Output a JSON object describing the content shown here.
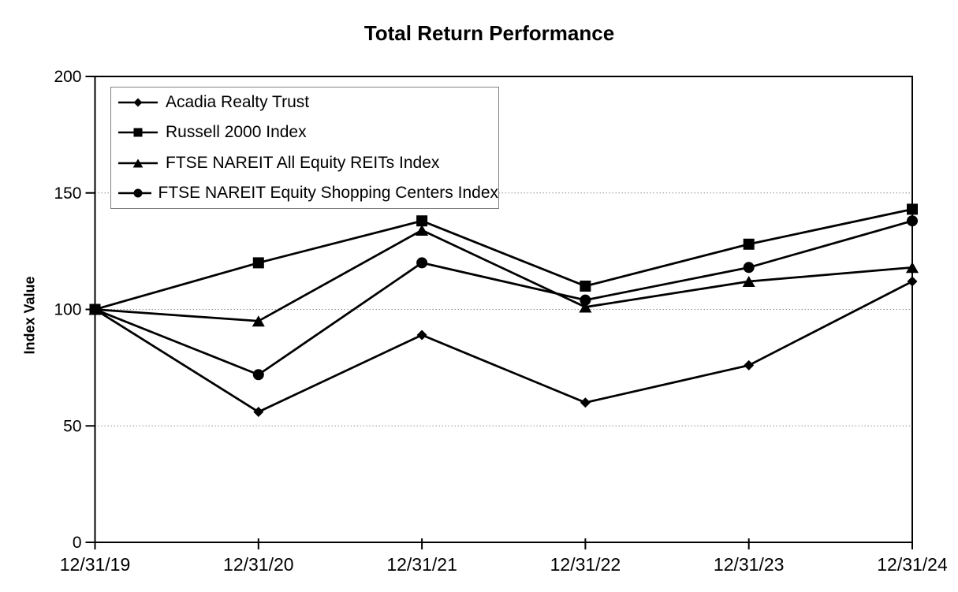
{
  "chart_data": {
    "type": "line",
    "title": "Total Return Performance",
    "ylabel": "Index Value",
    "xlabel": "",
    "x_categories": [
      "12/31/19",
      "12/31/20",
      "12/31/21",
      "12/31/22",
      "12/31/23",
      "12/31/24"
    ],
    "ylim": [
      0,
      200
    ],
    "yticks": [
      0,
      50,
      100,
      150,
      200
    ],
    "gridline_values": [
      50,
      100,
      150
    ],
    "grid_on": true,
    "legend_position": "top-left-inside",
    "line_color": "#000000",
    "grid_color": "#909090",
    "legend_border_color": "#808080",
    "series": [
      {
        "name": "Acadia Realty Trust",
        "marker": "diamond",
        "values": [
          100,
          56,
          89,
          60,
          76,
          112
        ]
      },
      {
        "name": "Russell 2000 Index",
        "marker": "square",
        "values": [
          100,
          120,
          138,
          110,
          128,
          143
        ]
      },
      {
        "name": "FTSE NAREIT All Equity REITs Index",
        "marker": "triangle",
        "values": [
          100,
          95,
          134,
          101,
          112,
          118
        ]
      },
      {
        "name": "FTSE NAREIT Equity Shopping Centers Index",
        "marker": "circle",
        "values": [
          100,
          72,
          120,
          104,
          118,
          138
        ]
      }
    ]
  }
}
